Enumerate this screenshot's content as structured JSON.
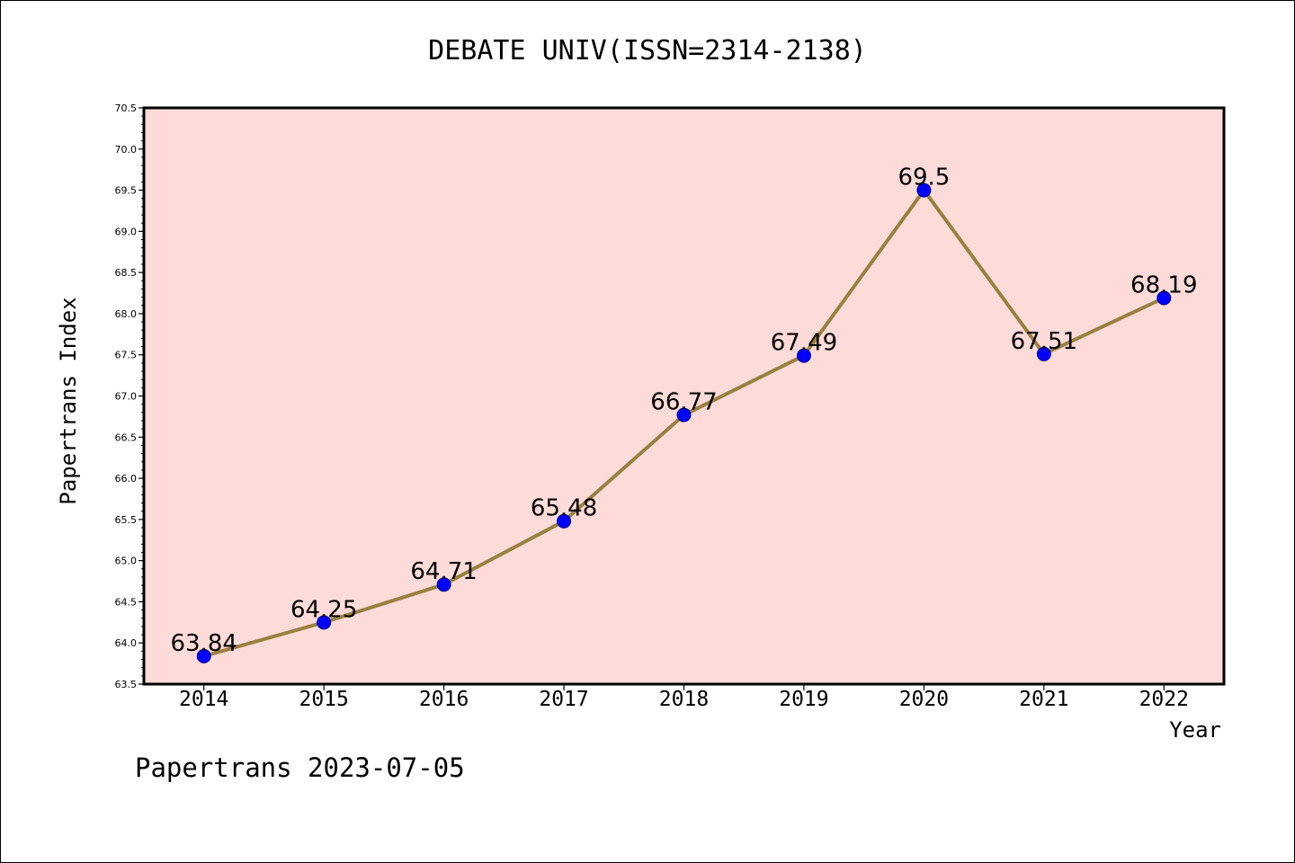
{
  "footer": "Papertrans 2023-07-05",
  "colors": {
    "plot_background": "#FDDBD9",
    "line": "#9A8040",
    "marker": "#0000FF"
  },
  "chart_data": {
    "type": "line",
    "title": "DEBATE UNIV(ISSN=2314-2138)",
    "xlabel": "Year",
    "ylabel": "Papertrans Index",
    "categories": [
      "2014",
      "2015",
      "2016",
      "2017",
      "2018",
      "2019",
      "2020",
      "2021",
      "2022"
    ],
    "series": [
      {
        "values": [
          63.84,
          64.25,
          64.71,
          65.48,
          66.77,
          67.49,
          69.5,
          67.51,
          68.19
        ],
        "labels": [
          "63.84",
          "64.25",
          "64.71",
          "65.48",
          "66.77",
          "67.49",
          "69.5",
          "67.51",
          "68.19"
        ]
      }
    ],
    "ylim": [
      63.5,
      70.5
    ],
    "yticks": [
      "63.5",
      "64.0",
      "64.5",
      "65.0",
      "65.5",
      "66.0",
      "66.5",
      "67.0",
      "67.5",
      "68.0",
      "68.5",
      "69.0",
      "69.5",
      "70.0",
      "70.5"
    ],
    "grid": false,
    "legend": "none"
  }
}
